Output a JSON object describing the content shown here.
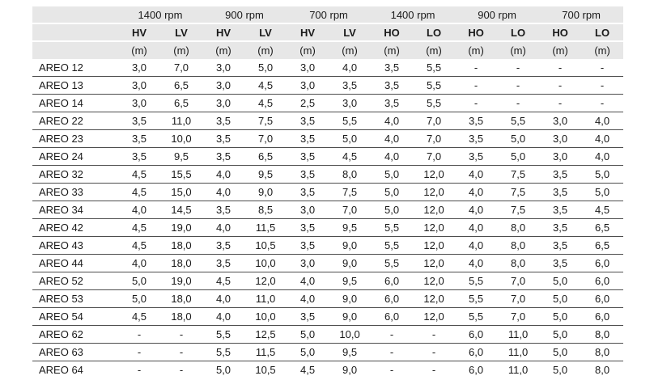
{
  "table": {
    "unit_label": "(m)",
    "column_groups": [
      {
        "label": "1400 rpm",
        "subcolumns": [
          "HV",
          "LV"
        ]
      },
      {
        "label": "900 rpm",
        "subcolumns": [
          "HV",
          "LV"
        ]
      },
      {
        "label": "700 rpm",
        "subcolumns": [
          "HV",
          "LV"
        ]
      },
      {
        "label": "1400 rpm",
        "subcolumns": [
          "HO",
          "LO"
        ]
      },
      {
        "label": "900 rpm",
        "subcolumns": [
          "HO",
          "LO"
        ]
      },
      {
        "label": "700 rpm",
        "subcolumns": [
          "HO",
          "LO"
        ]
      }
    ],
    "rows": [
      {
        "model": "AREO 12",
        "values": [
          "3,0",
          "7,0",
          "3,0",
          "5,0",
          "3,0",
          "4,0",
          "3,5",
          "5,5",
          "-",
          "-",
          "-",
          "-"
        ]
      },
      {
        "model": "AREO 13",
        "values": [
          "3,0",
          "6,5",
          "3,0",
          "4,5",
          "3,0",
          "3,5",
          "3,5",
          "5,5",
          "-",
          "-",
          "-",
          "-"
        ]
      },
      {
        "model": "AREO 14",
        "values": [
          "3,0",
          "6,5",
          "3,0",
          "4,5",
          "2,5",
          "3,0",
          "3,5",
          "5,5",
          "-",
          "-",
          "-",
          "-"
        ]
      },
      {
        "model": "AREO 22",
        "values": [
          "3,5",
          "11,0",
          "3,5",
          "7,5",
          "3,5",
          "5,5",
          "4,0",
          "7,0",
          "3,5",
          "5,5",
          "3,0",
          "4,0"
        ]
      },
      {
        "model": "AREO 23",
        "values": [
          "3,5",
          "10,0",
          "3,5",
          "7,0",
          "3,5",
          "5,0",
          "4,0",
          "7,0",
          "3,5",
          "5,0",
          "3,0",
          "4,0"
        ]
      },
      {
        "model": "AREO 24",
        "values": [
          "3,5",
          "9,5",
          "3,5",
          "6,5",
          "3,5",
          "4,5",
          "4,0",
          "7,0",
          "3,5",
          "5,0",
          "3,0",
          "4,0"
        ]
      },
      {
        "model": "AREO 32",
        "values": [
          "4,5",
          "15,5",
          "4,0",
          "9,5",
          "3,5",
          "8,0",
          "5,0",
          "12,0",
          "4,0",
          "7,5",
          "3,5",
          "5,0"
        ]
      },
      {
        "model": "AREO 33",
        "values": [
          "4,5",
          "15,0",
          "4,0",
          "9,0",
          "3,5",
          "7,5",
          "5,0",
          "12,0",
          "4,0",
          "7,5",
          "3,5",
          "5,0"
        ]
      },
      {
        "model": "AREO 34",
        "values": [
          "4,0",
          "14,5",
          "3,5",
          "8,5",
          "3,0",
          "7,0",
          "5,0",
          "12,0",
          "4,0",
          "7,5",
          "3,5",
          "4,5"
        ]
      },
      {
        "model": "AREO 42",
        "values": [
          "4,5",
          "19,0",
          "4,0",
          "11,5",
          "3,5",
          "9,5",
          "5,5",
          "12,0",
          "4,0",
          "8,0",
          "3,5",
          "6,5"
        ]
      },
      {
        "model": "AREO 43",
        "values": [
          "4,5",
          "18,0",
          "3,5",
          "10,5",
          "3,5",
          "9,0",
          "5,5",
          "12,0",
          "4,0",
          "8,0",
          "3,5",
          "6,5"
        ]
      },
      {
        "model": "AREO 44",
        "values": [
          "4,0",
          "18,0",
          "3,5",
          "10,0",
          "3,0",
          "9,0",
          "5,5",
          "12,0",
          "4,0",
          "8,0",
          "3,5",
          "6,0"
        ]
      },
      {
        "model": "AREO 52",
        "values": [
          "5,0",
          "19,0",
          "4,5",
          "12,0",
          "4,0",
          "9,5",
          "6,0",
          "12,0",
          "5,5",
          "7,0",
          "5,0",
          "6,0"
        ]
      },
      {
        "model": "AREO 53",
        "values": [
          "5,0",
          "18,0",
          "4,0",
          "11,0",
          "4,0",
          "9,0",
          "6,0",
          "12,0",
          "5,5",
          "7,0",
          "5,0",
          "6,0"
        ]
      },
      {
        "model": "AREO 54",
        "values": [
          "4,5",
          "18,0",
          "4,0",
          "10,0",
          "3,5",
          "9,0",
          "6,0",
          "12,0",
          "5,5",
          "7,0",
          "5,0",
          "6,0"
        ]
      },
      {
        "model": "AREO 62",
        "values": [
          "-",
          "-",
          "5,5",
          "12,5",
          "5,0",
          "10,0",
          "-",
          "-",
          "6,0",
          "11,0",
          "5,0",
          "8,0"
        ]
      },
      {
        "model": "AREO 63",
        "values": [
          "-",
          "-",
          "5,5",
          "11,5",
          "5,0",
          "9,5",
          "-",
          "-",
          "6,0",
          "11,0",
          "5,0",
          "8,0"
        ]
      },
      {
        "model": "AREO 64",
        "values": [
          "-",
          "-",
          "5,0",
          "10,5",
          "4,5",
          "9,0",
          "-",
          "-",
          "6,0",
          "11,0",
          "5,0",
          "8,0"
        ]
      }
    ]
  },
  "colors": {
    "header_bg": "#e7e7e7",
    "row_divider": "#4d4d4d",
    "text": "#1a1a1a"
  }
}
